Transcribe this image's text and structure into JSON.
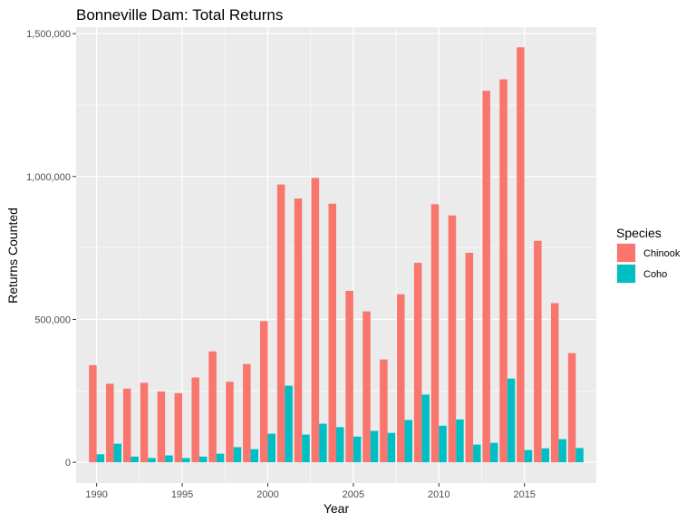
{
  "chart_data": {
    "type": "bar",
    "title": "Bonneville Dam: Total Returns",
    "xlabel": "Year",
    "ylabel": "Returns Counted",
    "x": [
      1990,
      1991,
      1992,
      1993,
      1994,
      1995,
      1996,
      1997,
      1998,
      1999,
      2000,
      2001,
      2002,
      2003,
      2004,
      2005,
      2006,
      2007,
      2008,
      2009,
      2010,
      2011,
      2012,
      2013,
      2014,
      2015,
      2016,
      2017,
      2018
    ],
    "series": [
      {
        "name": "Chinook",
        "color": "#F8766D",
        "values": [
          340000,
          275000,
          258000,
          278000,
          248000,
          242000,
          297000,
          388000,
          282000,
          344000,
          494000,
          972000,
          923000,
          995000,
          905000,
          600000,
          528000,
          360000,
          588000,
          698000,
          903000,
          864000,
          733000,
          1300000,
          1340000,
          1452000,
          775000,
          557000,
          382000
        ]
      },
      {
        "name": "Coho",
        "color": "#00BFC4",
        "values": [
          28000,
          65000,
          20000,
          15000,
          24000,
          15000,
          20000,
          30000,
          53000,
          46000,
          100000,
          268000,
          97000,
          135000,
          123000,
          90000,
          110000,
          103000,
          148000,
          237000,
          128000,
          150000,
          62000,
          68000,
          293000,
          43000,
          49000,
          81000,
          50000
        ]
      }
    ],
    "xlim": [
      1988.8,
      2019.2
    ],
    "ylim": [
      -72500,
      1522500
    ],
    "x_ticks": [
      1990,
      1995,
      2000,
      2005,
      2010,
      2015
    ],
    "x_tick_labels": [
      "1990",
      "1995",
      "2000",
      "2005",
      "2010",
      "2015"
    ],
    "y_ticks": [
      0,
      500000,
      1000000,
      1500000
    ],
    "y_tick_labels": [
      "0",
      "500,000",
      "1,000,000",
      "1,500,000"
    ],
    "grid": true,
    "legend": {
      "title": "Species",
      "position": "right"
    }
  }
}
